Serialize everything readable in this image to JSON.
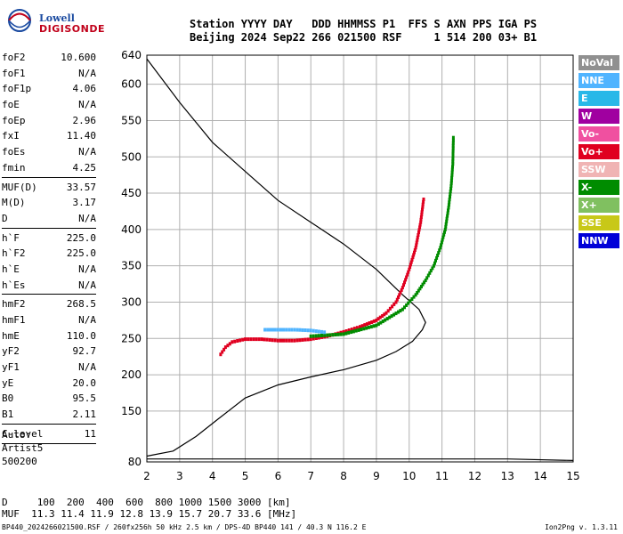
{
  "logo": {
    "line1": "Lowell",
    "line2": "DIGISONDE"
  },
  "header": {
    "line1": "Station YYYY DAY   DDD HHMMSS P1  FFS S AXN PPS IGA PS",
    "line2": "Beijing 2024 Sep22 266 021500 RSF     1 514 200 03+ B1"
  },
  "params": [
    [
      {
        "k": "foF2",
        "v": "10.600"
      },
      {
        "k": "foF1",
        "v": "N/A"
      },
      {
        "k": "foF1p",
        "v": "4.06"
      },
      {
        "k": "foE",
        "v": "N/A"
      },
      {
        "k": "foEp",
        "v": "2.96"
      },
      {
        "k": "fxI",
        "v": "11.40"
      },
      {
        "k": "foEs",
        "v": "N/A"
      },
      {
        "k": "fmin",
        "v": "4.25"
      }
    ],
    [
      {
        "k": "MUF(D)",
        "v": "33.57"
      },
      {
        "k": "M(D)",
        "v": "3.17"
      },
      {
        "k": "D",
        "v": "N/A"
      }
    ],
    [
      {
        "k": "h`F",
        "v": "225.0"
      },
      {
        "k": "h`F2",
        "v": "225.0"
      },
      {
        "k": "h`E",
        "v": "N/A"
      },
      {
        "k": "h`Es",
        "v": "N/A"
      }
    ],
    [
      {
        "k": "hmF2",
        "v": "268.5"
      },
      {
        "k": "hmF1",
        "v": "N/A"
      },
      {
        "k": "hmE",
        "v": "110.0"
      },
      {
        "k": "yF2",
        "v": "92.7"
      },
      {
        "k": "yF1",
        "v": "N/A"
      },
      {
        "k": "yE",
        "v": "20.0"
      },
      {
        "k": "B0",
        "v": "95.5"
      },
      {
        "k": "B1",
        "v": "2.11"
      }
    ],
    [
      {
        "k": "C-level",
        "v": "11"
      }
    ]
  ],
  "auto": [
    "Auto:",
    "Artist5",
    "500200"
  ],
  "legend": [
    {
      "label": "NoVal",
      "color": "#909090"
    },
    {
      "label": "NNE",
      "color": "#50b4ff"
    },
    {
      "label": "E",
      "color": "#28b8e8"
    },
    {
      "label": "W",
      "color": "#a000a0"
    },
    {
      "label": "Vo-",
      "color": "#f050a0"
    },
    {
      "label": "Vo+",
      "color": "#e00020"
    },
    {
      "label": "SSW",
      "color": "#f0b4b4"
    },
    {
      "label": "X-",
      "color": "#008c00"
    },
    {
      "label": "X+",
      "color": "#80c060"
    },
    {
      "label": "SSE",
      "color": "#c8c818"
    },
    {
      "label": "NNW",
      "color": "#0000d8"
    }
  ],
  "bottom": {
    "line1": "D     100  200  400  600  800 1000 1500 3000 [km]",
    "line2": "MUF  11.3 11.4 11.9 12.8 13.9 15.7 20.7 33.6 [MHz]"
  },
  "footer": "BP440_2024266021500.RSF / 260fx256h 50 kHz 2.5 km / DPS-4D BP440 141 / 40.3 N 116.2 E",
  "version": "Ion2Png v. 1.3.11",
  "chart_data": {
    "type": "scatter",
    "xlim": [
      2,
      15
    ],
    "ylim": [
      80,
      640
    ],
    "x_ticks": [
      2,
      3,
      4,
      5,
      6,
      7,
      8,
      9,
      10,
      11,
      12,
      13,
      14,
      15
    ],
    "y_ticks": [
      80,
      150,
      200,
      250,
      300,
      350,
      400,
      450,
      500,
      550,
      600,
      640
    ],
    "grid": true,
    "series": [
      {
        "kind": "profile",
        "color": "#000000",
        "points": [
          [
            2,
            88
          ],
          [
            2.8,
            95
          ],
          [
            3.5,
            115
          ],
          [
            4.2,
            140
          ],
          [
            5,
            168
          ],
          [
            6,
            186
          ],
          [
            7,
            197
          ],
          [
            8,
            207
          ],
          [
            9,
            220
          ],
          [
            9.6,
            232
          ],
          [
            10.1,
            246
          ],
          [
            10.4,
            262
          ],
          [
            10.5,
            272
          ],
          [
            10.3,
            290
          ],
          [
            9.8,
            310
          ],
          [
            9,
            345
          ],
          [
            8,
            380
          ],
          [
            7,
            410
          ],
          [
            6,
            440
          ],
          [
            5,
            480
          ],
          [
            4,
            520
          ],
          [
            3,
            575
          ],
          [
            2,
            635
          ]
        ]
      },
      {
        "kind": "profile",
        "color": "#000000",
        "points": [
          [
            2,
            84
          ],
          [
            3,
            84
          ],
          [
            5,
            84
          ],
          [
            7,
            84
          ],
          [
            9,
            84
          ],
          [
            11,
            84
          ],
          [
            13,
            84
          ],
          [
            15,
            82
          ]
        ]
      },
      {
        "kind": "trace",
        "color": "#e00020",
        "points": [
          [
            4.25,
            228
          ],
          [
            4.4,
            238
          ],
          [
            4.6,
            245
          ],
          [
            5,
            249
          ],
          [
            5.5,
            249
          ],
          [
            6,
            247
          ],
          [
            6.5,
            247
          ],
          [
            7,
            249
          ],
          [
            7.5,
            253
          ],
          [
            8,
            259
          ],
          [
            8.5,
            266
          ],
          [
            9,
            275
          ],
          [
            9.3,
            285
          ],
          [
            9.6,
            300
          ],
          [
            9.8,
            320
          ],
          [
            10,
            345
          ],
          [
            10.2,
            375
          ],
          [
            10.35,
            410
          ],
          [
            10.45,
            445
          ]
        ]
      },
      {
        "kind": "trace",
        "color": "#008c00",
        "points": [
          [
            7,
            253
          ],
          [
            8,
            256
          ],
          [
            9,
            268
          ],
          [
            9.8,
            290
          ],
          [
            10.2,
            310
          ],
          [
            10.5,
            330
          ],
          [
            10.75,
            350
          ],
          [
            10.95,
            375
          ],
          [
            11.1,
            400
          ],
          [
            11.2,
            430
          ],
          [
            11.28,
            460
          ],
          [
            11.33,
            490
          ],
          [
            11.35,
            530
          ]
        ]
      },
      {
        "kind": "trace",
        "color": "#50b4ff",
        "points": [
          [
            5.6,
            262
          ],
          [
            6,
            262
          ],
          [
            6.5,
            262
          ],
          [
            7,
            261
          ],
          [
            7.5,
            258
          ]
        ]
      }
    ]
  }
}
